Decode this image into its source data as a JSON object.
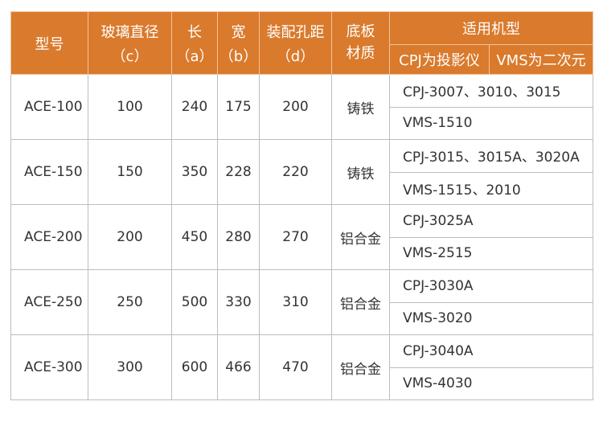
{
  "headers": {
    "model": "型号",
    "glass": "玻璃直径",
    "glass_unit": "（c）",
    "length": "长",
    "length_unit": "（a）",
    "width": "宽",
    "width_unit": "（b）",
    "hole": "装配孔距",
    "hole_unit": "（d）",
    "material": "底板\n材质",
    "applicable": "适用机型",
    "cpj": "CPJ为投影仪",
    "vms": "VMS为二次元"
  },
  "rows": [
    {
      "model": "ACE-100",
      "c": "100",
      "a": "240",
      "b": "175",
      "d": "200",
      "material": "铸铁",
      "cpj": "CPJ-3007、3010、3015",
      "vms": "VMS-1510"
    },
    {
      "model": "ACE-150",
      "c": "150",
      "a": "350",
      "b": "228",
      "d": "220",
      "material": "铸铁",
      "cpj": "CPJ-3015、3015A、3020A",
      "vms": "VMS-1515、2010"
    },
    {
      "model": "ACE-200",
      "c": "200",
      "a": "450",
      "b": "280",
      "d": "270",
      "material": "铝合金",
      "cpj": "CPJ-3025A",
      "vms": "VMS-2515"
    },
    {
      "model": "ACE-250",
      "c": "250",
      "a": "500",
      "b": "330",
      "d": "310",
      "material": "铝合金",
      "cpj": "CPJ-3030A",
      "vms": "VMS-3020"
    },
    {
      "model": "ACE-300",
      "c": "300",
      "a": "600",
      "b": "466",
      "d": "470",
      "material": "铝合金",
      "cpj": "CPJ-3040A",
      "vms": "VMS-4030"
    }
  ]
}
